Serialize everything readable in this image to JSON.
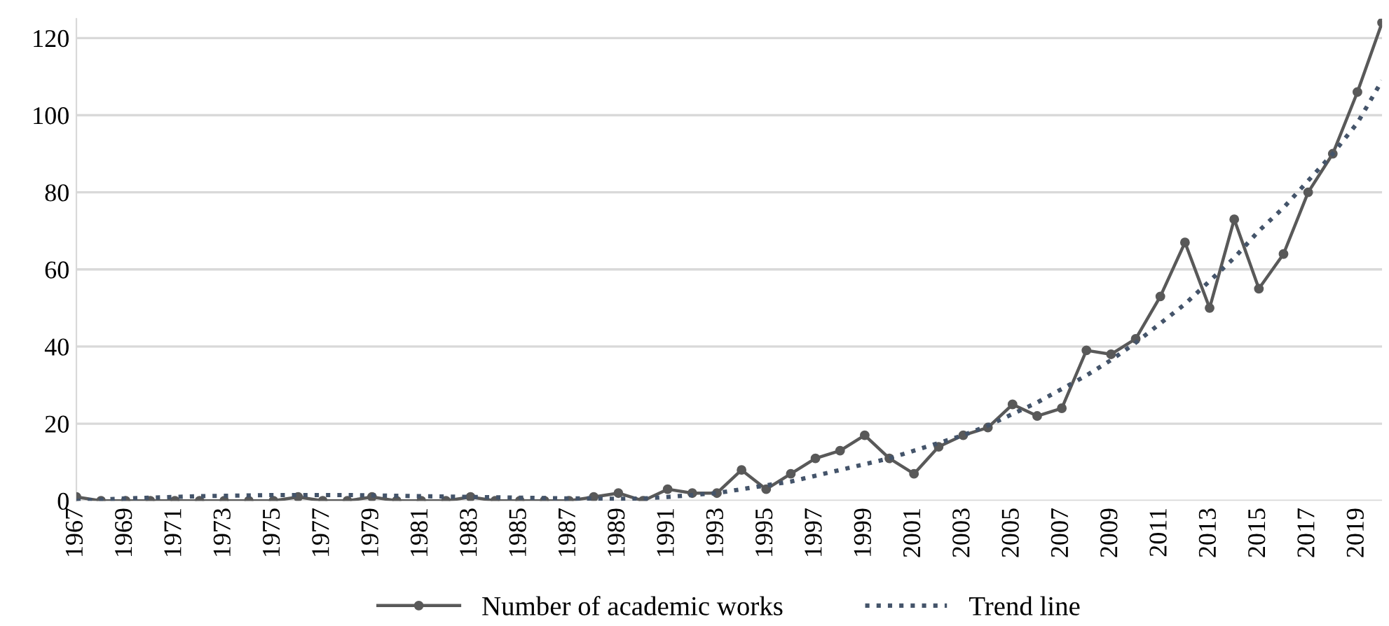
{
  "chart_data": {
    "type": "line",
    "categories": [
      "1967",
      null,
      "1969",
      null,
      "1971",
      null,
      "1973",
      null,
      "1975",
      null,
      "1977",
      null,
      "1979",
      null,
      "1981",
      null,
      "1983",
      null,
      "1985",
      null,
      "1987",
      null,
      "1989",
      null,
      "1991",
      null,
      "1993",
      null,
      "1995",
      null,
      "1997",
      null,
      "1999",
      null,
      "2001",
      null,
      "2003",
      null,
      "2005",
      null,
      "2007",
      null,
      "2009",
      null,
      "2011",
      null,
      "2013",
      null,
      "2015",
      null,
      "2017",
      null,
      "2019",
      null
    ],
    "series": [
      {
        "name": "Number of academic works",
        "color": "#595959",
        "marker": "circle",
        "line_style": "solid",
        "values": [
          1,
          0,
          0,
          0,
          0,
          0,
          0,
          0,
          0,
          1,
          0,
          0,
          1,
          0,
          0,
          0,
          1,
          0,
          0,
          0,
          0,
          1,
          2,
          0,
          3,
          2,
          2,
          8,
          3,
          7,
          11,
          13,
          17,
          11,
          7,
          14,
          17,
          19,
          25,
          22,
          24,
          39,
          38,
          42,
          53,
          67,
          50,
          73,
          55,
          64,
          80,
          90,
          106,
          124
        ]
      },
      {
        "name": "Trend line",
        "color": "#44546a",
        "marker": "none",
        "line_style": "dotted",
        "values": [
          0,
          0.3,
          0.6,
          0.8,
          1,
          1.2,
          1.3,
          1.4,
          1.5,
          1.5,
          1.5,
          1.5,
          1.4,
          1.3,
          1.2,
          1.1,
          1,
          0.9,
          0.8,
          0.7,
          0.6,
          0.6,
          0.5,
          0.6,
          1,
          1.5,
          2,
          3,
          4,
          5,
          6.5,
          8,
          9.5,
          11,
          13,
          15,
          17,
          19.5,
          22.5,
          25.5,
          29,
          32.5,
          36.5,
          41,
          46,
          51,
          57,
          63,
          70,
          76,
          83,
          90,
          98,
          109
        ]
      }
    ],
    "ylim": [
      0,
      125
    ],
    "yticks": [
      0,
      20,
      40,
      60,
      80,
      100,
      120
    ],
    "grid": "y",
    "legend": "bottom"
  }
}
